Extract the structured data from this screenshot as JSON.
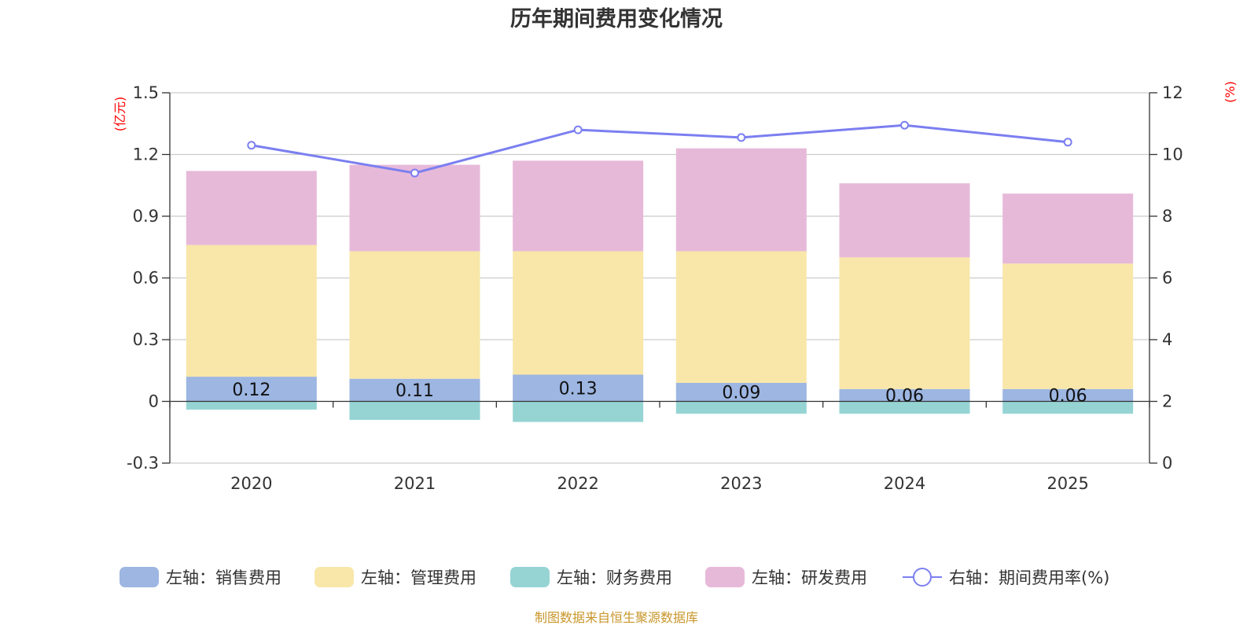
{
  "chart_data": {
    "type": "bar",
    "title": "历年期间费用变化情况",
    "categories": [
      "2020",
      "2021",
      "2022",
      "2023",
      "2024",
      "2025"
    ],
    "series": [
      {
        "name": "左轴：销售费用",
        "axis": "left",
        "kind": "stacked-bar",
        "color": "#9db6e2",
        "values": [
          0.12,
          0.11,
          0.13,
          0.09,
          0.06,
          0.06
        ],
        "labels": [
          "0.12",
          "0.11",
          "0.13",
          "0.09",
          "0.06",
          "0.06"
        ]
      },
      {
        "name": "左轴：管理费用",
        "axis": "left",
        "kind": "stacked-bar",
        "color": "#f8e7a9",
        "values": [
          0.64,
          0.62,
          0.6,
          0.64,
          0.64,
          0.61
        ]
      },
      {
        "name": "左轴：财务费用",
        "axis": "left",
        "kind": "stacked-bar",
        "color": "#96d4d4",
        "values": [
          -0.04,
          -0.09,
          -0.1,
          -0.06,
          -0.06,
          -0.06
        ]
      },
      {
        "name": "左轴：研发费用",
        "axis": "left",
        "kind": "stacked-bar",
        "color": "#e7b9d9",
        "values": [
          0.36,
          0.42,
          0.44,
          0.5,
          0.36,
          0.34
        ]
      },
      {
        "name": "右轴：期间费用率(%)",
        "axis": "right",
        "kind": "line",
        "color": "#7b7ff0",
        "values": [
          10.3,
          9.4,
          10.8,
          10.55,
          10.95,
          10.4
        ]
      }
    ],
    "left_axis": {
      "unit": "(亿元)",
      "ylim": [
        -0.3,
        1.5
      ],
      "ticks": [
        -0.3,
        0,
        0.3,
        0.6,
        0.9,
        1.2,
        1.5
      ],
      "tick_labels": [
        "-0.3",
        "0",
        "0.3",
        "0.6",
        "0.9",
        "1.2",
        "1.5"
      ]
    },
    "right_axis": {
      "unit": "(%)",
      "ylim": [
        0,
        12
      ],
      "ticks": [
        0,
        2,
        4,
        6,
        8,
        10,
        12
      ],
      "tick_labels": [
        "0",
        "2",
        "4",
        "6",
        "8",
        "10",
        "12"
      ]
    },
    "grid": true,
    "legend_position": "bottom",
    "source": "制图数据来自恒生聚源数据库"
  }
}
